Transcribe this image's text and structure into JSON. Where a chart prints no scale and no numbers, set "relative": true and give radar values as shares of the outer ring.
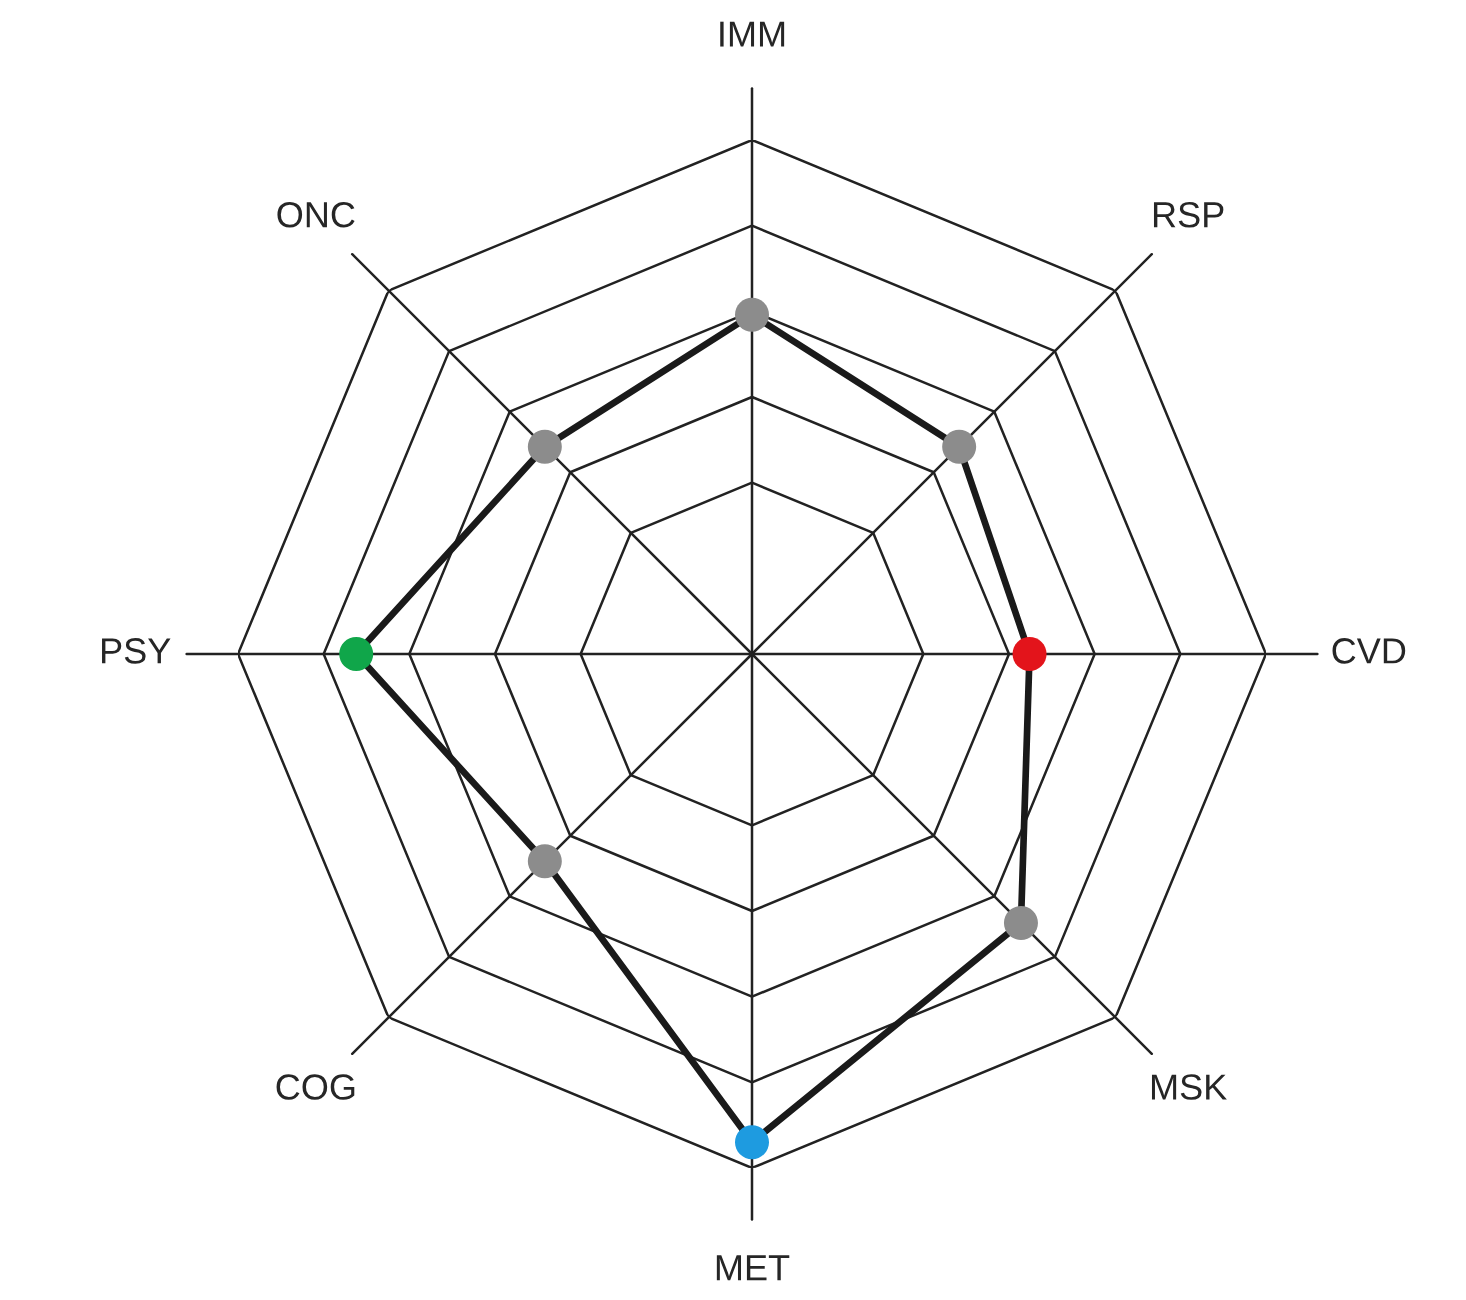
{
  "chart_data": {
    "type": "radar",
    "relative": true,
    "grid": true,
    "marker": "circle",
    "line_style": "solid",
    "categories": [
      "IMM",
      "RSP",
      "CVD",
      "MSK",
      "MET",
      "COG",
      "PSY",
      "ONC"
    ],
    "series": [
      {
        "color": "#1a1a1a",
        "values": [
          0.66,
          0.57,
          0.54,
          0.74,
          0.95,
          0.57,
          0.77,
          0.57
        ],
        "colors": [
          "#8c8c8c",
          "#8c8c8c",
          "#e3141b",
          "#8c8c8c",
          "#1e9be0",
          "#8c8c8c",
          "#10a64a",
          "#8c8c8c"
        ]
      }
    ]
  }
}
